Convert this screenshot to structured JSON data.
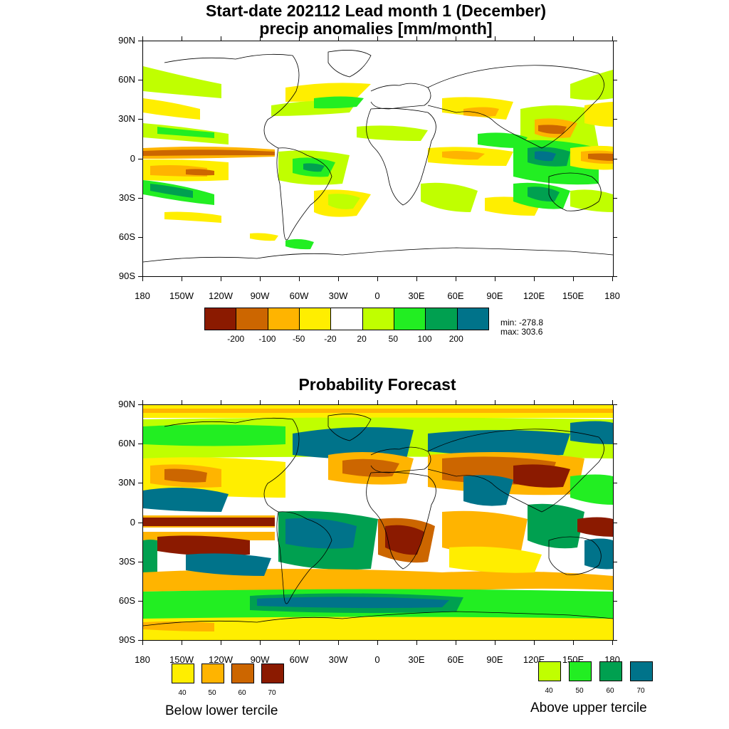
{
  "top": {
    "title_line1": "Start-date 202112 Lead month 1 (December)",
    "title_line2": "precip anomalies [mm/month]",
    "lat_labels": [
      "90N",
      "60N",
      "30N",
      "0",
      "30S",
      "60S",
      "90S"
    ],
    "lon_labels": [
      "180",
      "150W",
      "120W",
      "90W",
      "60W",
      "30W",
      "0",
      "30E",
      "60E",
      "90E",
      "120E",
      "150E",
      "180"
    ],
    "colorbar": {
      "colors": [
        "#8b1a00",
        "#cc6600",
        "#ffb400",
        "#ffee00",
        "#ffffff",
        "#c0ff00",
        "#22ee22",
        "#00a050",
        "#00738a"
      ],
      "labels": [
        "-200",
        "-100",
        "-50",
        "-20",
        "20",
        "50",
        "100",
        "200"
      ]
    },
    "min_text": "min: -278.8",
    "max_text": "max: 303.6"
  },
  "bottom": {
    "title": "Probability Forecast",
    "lat_labels": [
      "90N",
      "60N",
      "30N",
      "0",
      "30S",
      "60S",
      "90S"
    ],
    "lon_labels": [
      "180",
      "150W",
      "120W",
      "90W",
      "60W",
      "30W",
      "0",
      "30E",
      "60E",
      "90E",
      "120E",
      "150E",
      "180"
    ],
    "below": {
      "label": "Below lower tercile",
      "colors": [
        "#ffee00",
        "#ffb400",
        "#cc6600",
        "#8b1a00"
      ],
      "values": [
        "40",
        "50",
        "60",
        "70"
      ]
    },
    "above": {
      "label": "Above upper tercile",
      "colors": [
        "#c0ff00",
        "#22ee22",
        "#00a050",
        "#00738a"
      ],
      "values": [
        "40",
        "50",
        "60",
        "70"
      ]
    }
  }
}
